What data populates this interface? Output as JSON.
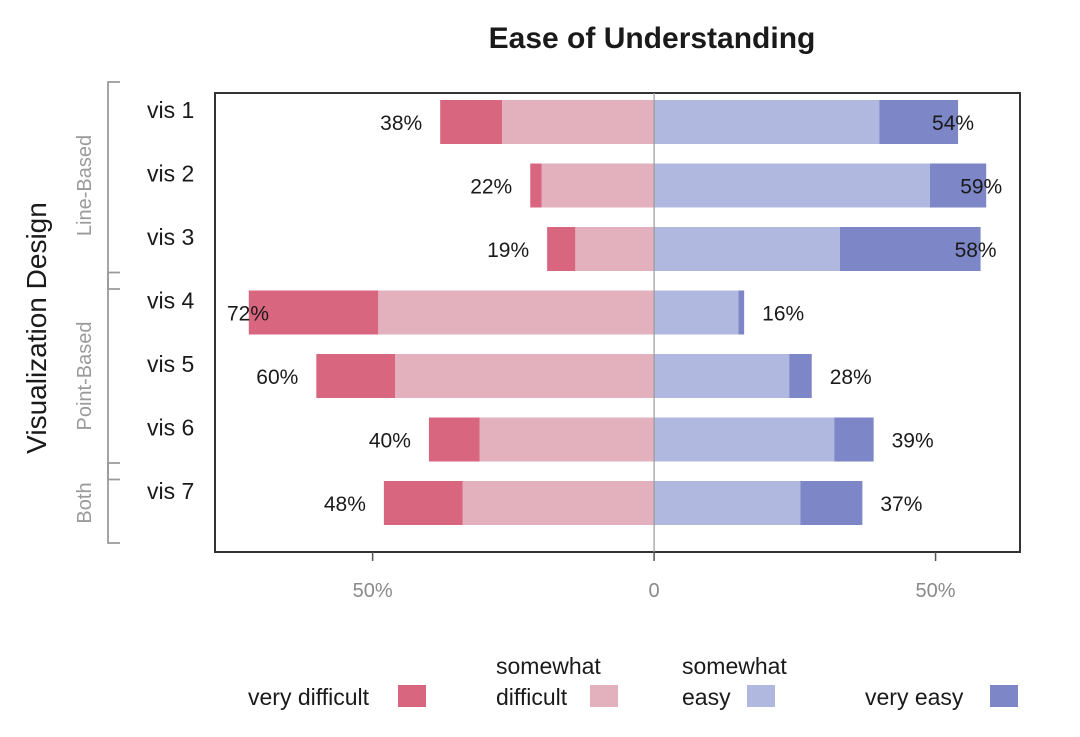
{
  "chart_data": {
    "type": "bar",
    "orientation": "horizontal-diverging",
    "title": "Ease of Understanding",
    "ylabel": "Visualization Design",
    "categories": [
      "vis 1",
      "vis 2",
      "vis 3",
      "vis 4",
      "vis 5",
      "vis 6",
      "vis 7"
    ],
    "groups": [
      {
        "label": "Line-Based",
        "members": [
          "vis 1",
          "vis 2",
          "vis 3"
        ]
      },
      {
        "label": "Point-Based",
        "members": [
          "vis 4",
          "vis 5",
          "vis 6"
        ]
      },
      {
        "label": "Both",
        "members": [
          "vis 7"
        ]
      }
    ],
    "xlim": [
      -78,
      65
    ],
    "x_ticks": [
      {
        "value": -50,
        "label": "50%"
      },
      {
        "value": 0,
        "label": "0"
      },
      {
        "value": 50,
        "label": "50%"
      }
    ],
    "series": [
      {
        "name": "very difficult",
        "color": "#d9667f",
        "side": "negative",
        "values": [
          11,
          2,
          5,
          23,
          14,
          9,
          14
        ]
      },
      {
        "name": "somewhat difficult",
        "color": "#e3b1bd",
        "side": "negative",
        "values": [
          27,
          20,
          14,
          49,
          46,
          31,
          34
        ]
      },
      {
        "name": "somewhat easy",
        "color": "#b0b8e0",
        "side": "positive",
        "values": [
          40,
          49,
          33,
          15,
          24,
          32,
          26
        ]
      },
      {
        "name": "very easy",
        "color": "#7d86c6",
        "side": "positive",
        "values": [
          14,
          10,
          25,
          1,
          4,
          7,
          11
        ]
      }
    ],
    "negative_totals": [
      "38%",
      "22%",
      "19%",
      "72%",
      "60%",
      "40%",
      "48%"
    ],
    "positive_totals": [
      "54%",
      "59%",
      "58%",
      "16%",
      "28%",
      "39%",
      "37%"
    ],
    "legend": {
      "placement": "bottom",
      "items": [
        {
          "lines": [
            "very difficult"
          ],
          "color": "#d9667f"
        },
        {
          "lines": [
            "somewhat",
            "difficult"
          ],
          "color": "#e3b1bd"
        },
        {
          "lines": [
            "somewhat",
            "easy"
          ],
          "color": "#b0b8e0"
        },
        {
          "lines": [
            "very easy"
          ],
          "color": "#7d86c6"
        }
      ]
    },
    "grid": false
  }
}
